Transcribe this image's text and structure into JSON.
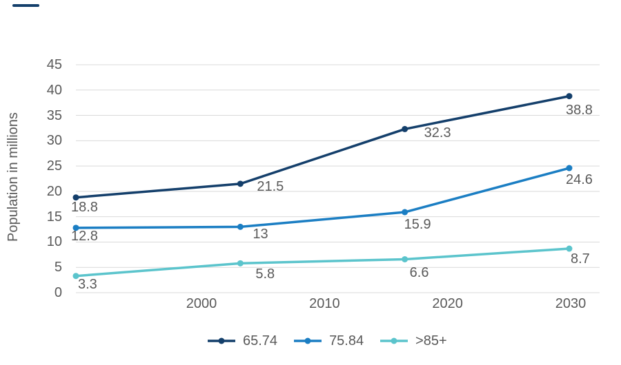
{
  "accent_color": "#143F6B",
  "text_color": "#595959",
  "gridline_color": "#D9D9D9",
  "chart_data": {
    "type": "line",
    "title": "",
    "xlabel": "",
    "ylabel": "Population in millions",
    "ylim": [
      0,
      45
    ],
    "y_tick_step": 5,
    "y_tick_labels": [
      "45",
      "40",
      "35",
      "30",
      "25",
      "20",
      "15",
      "10",
      "5",
      "0"
    ],
    "x_tick_labels": [
      "2000",
      "2010",
      "2020",
      "2030"
    ],
    "grid": true,
    "legend_position": "bottom",
    "series": [
      {
        "name": "65.74",
        "color": "#143F6B",
        "values": [
          18.8,
          21.5,
          32.3,
          38.8
        ],
        "point_labels": [
          "18.8",
          "21.5",
          "32.3",
          "38.8"
        ]
      },
      {
        "name": "75.84",
        "color": "#1B7EC3",
        "values": [
          12.8,
          13,
          15.9,
          24.6
        ],
        "point_labels": [
          "12.8",
          "13",
          "15.9",
          "24.6"
        ]
      },
      {
        "name": ">85+",
        "color": "#5BC4CC",
        "values": [
          3.3,
          5.8,
          6.6,
          8.7
        ],
        "point_labels": [
          "3.3",
          "5.8",
          "6.6",
          "8.7"
        ]
      }
    ]
  }
}
